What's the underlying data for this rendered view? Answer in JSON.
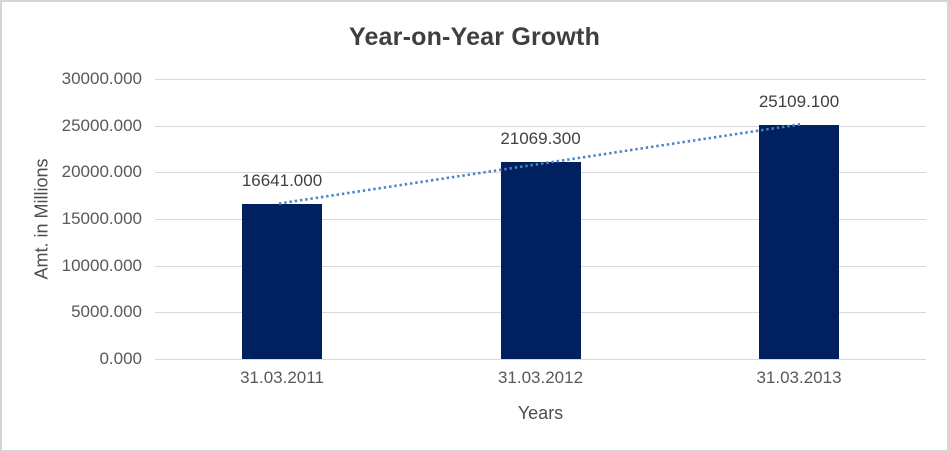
{
  "window": {
    "background": "#ffffff",
    "border_color": "#d5d5d5"
  },
  "chart_data": {
    "type": "bar",
    "title": "Year-on-Year Growth",
    "categories": [
      "31.03.2011",
      "31.03.2012",
      "31.03.2013"
    ],
    "values": [
      16641.0,
      21069.3,
      25109.1
    ],
    "data_labels": [
      "16641.000",
      "21069.300",
      "25109.100"
    ],
    "xlabel": "Years",
    "ylabel": "Amt. in Millions",
    "ylim": [
      0,
      30000
    ],
    "y_ticks": [
      30000,
      25000,
      20000,
      15000,
      10000,
      5000,
      0
    ],
    "y_tick_labels": [
      "30000.000",
      "25000.000",
      "20000.000",
      "15000.000",
      "10000.000",
      "5000.000",
      "0.000"
    ],
    "grid": true,
    "legend": false,
    "colors": {
      "bar": "#002060",
      "trendline": "#4a84c4",
      "gridline": "#d9d9d9",
      "title": "#3f3f3f",
      "data_label": "#404040",
      "tick_label": "#595959",
      "axis_title": "#4d4d4d"
    },
    "trendline": {
      "type": "linear",
      "style": "dotted"
    }
  }
}
